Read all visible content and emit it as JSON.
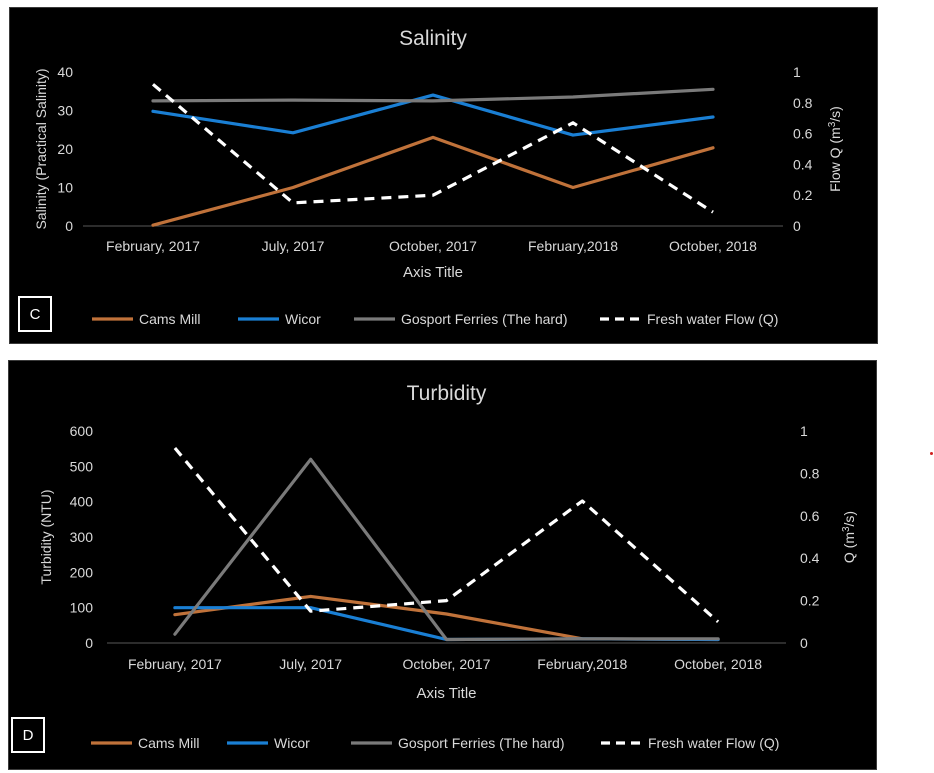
{
  "chart_data": [
    {
      "type": "line",
      "panel_letter": "C",
      "title": "Salinity",
      "xlabel": "Axis Title",
      "ylabel": "Salinity (Practical Salinity)",
      "y2label_main": "Flow Q (m",
      "y2label_sup": "3",
      "y2label_end": "/s)",
      "categories": [
        "February, 2017",
        "July, 2017",
        "October, 2017",
        "February,2018",
        "October, 2018"
      ],
      "ylim": [
        0,
        40
      ],
      "yticks": [
        0,
        10,
        20,
        30,
        40
      ],
      "y2lim": [
        0,
        1
      ],
      "y2ticks": [
        "0",
        "0.2",
        "0.4",
        "0.6",
        "0.8",
        "1"
      ],
      "grid": false,
      "legend_position": "bottom",
      "series": [
        {
          "name": "Cams Mill",
          "color": "#c0723a",
          "axis": "left",
          "dashed": false,
          "values": [
            0.2,
            10,
            23,
            10,
            20.3
          ]
        },
        {
          "name": "Wicor",
          "color": "#1a7fd4",
          "axis": "left",
          "dashed": false,
          "values": [
            29.8,
            24.2,
            34,
            23.6,
            28.3
          ]
        },
        {
          "name": "Gosport Ferries (The hard)",
          "color": "#7a7a7a",
          "axis": "left",
          "dashed": false,
          "values": [
            32.5,
            32.7,
            32.5,
            33.5,
            35.5
          ]
        },
        {
          "name": "Fresh water Flow (Q)",
          "color": "#ffffff",
          "axis": "right",
          "dashed": true,
          "values": [
            0.92,
            0.15,
            0.2,
            0.67,
            0.09
          ]
        }
      ]
    },
    {
      "type": "line",
      "panel_letter": "D",
      "title": "Turbidity",
      "xlabel": "Axis Title",
      "ylabel": "Turbidity (NTU)",
      "y2label_main": "Q (m",
      "y2label_sup": "3",
      "y2label_end": "/s)",
      "categories": [
        "February, 2017",
        "July, 2017",
        "October, 2017",
        "February,2018",
        "October, 2018"
      ],
      "ylim": [
        0,
        600
      ],
      "yticks": [
        0,
        100,
        200,
        300,
        400,
        500,
        600
      ],
      "y2lim": [
        0,
        1
      ],
      "y2ticks": [
        "0",
        "0.2",
        "0.4",
        "0.6",
        "0.8",
        "1"
      ],
      "grid": false,
      "legend_position": "bottom",
      "series": [
        {
          "name": "Cams Mill",
          "color": "#c0723a",
          "axis": "left",
          "dashed": false,
          "values": [
            80,
            132,
            82,
            12,
            10
          ]
        },
        {
          "name": "Wicor",
          "color": "#1a7fd4",
          "axis": "left",
          "dashed": false,
          "values": [
            100,
            100,
            10,
            12,
            10
          ]
        },
        {
          "name": "Gosport Ferries (The hard)",
          "color": "#7a7a7a",
          "axis": "left",
          "dashed": false,
          "values": [
            25,
            520,
            10,
            12,
            12
          ]
        },
        {
          "name": "Fresh water Flow (Q)",
          "color": "#ffffff",
          "axis": "right",
          "dashed": true,
          "values": [
            0.92,
            0.15,
            0.2,
            0.67,
            0.1
          ]
        }
      ]
    }
  ]
}
